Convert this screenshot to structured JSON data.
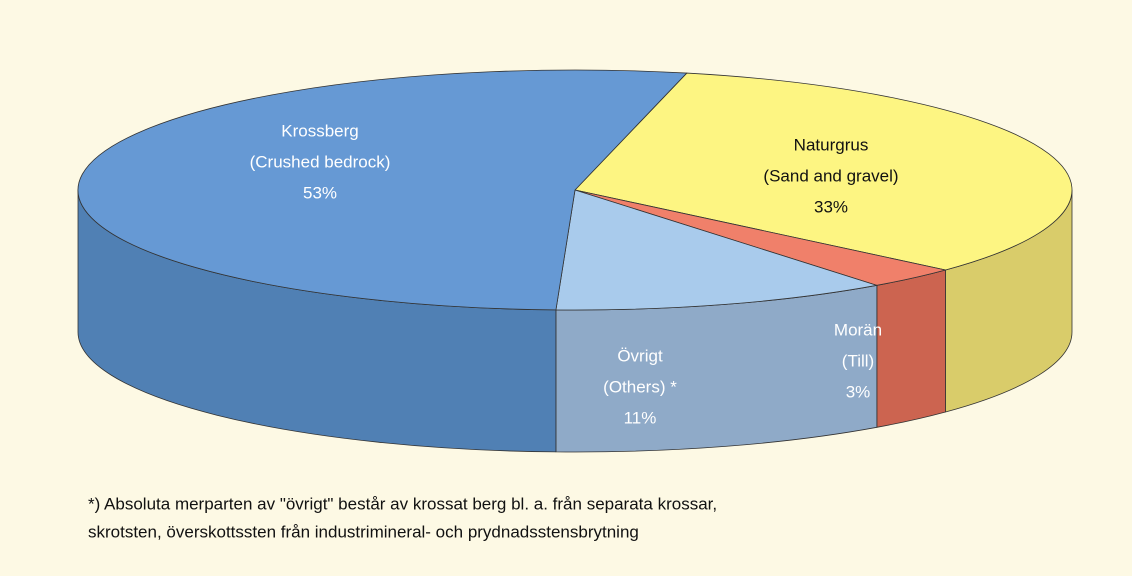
{
  "chart_data": {
    "type": "pie3d",
    "labels": [
      [
        "Naturgrus",
        "(Sand and gravel)"
      ],
      [
        "Morän",
        "(Till)"
      ],
      [
        "Övrigt",
        "(Others) *"
      ],
      [
        "Krossberg",
        "(Crushed bedrock)"
      ]
    ],
    "values": [
      33,
      3,
      11,
      53
    ],
    "value_labels": [
      "33%",
      "3%",
      "11%",
      "53%"
    ],
    "colors": [
      "#fdf582",
      "#f0806a",
      "#a9cbec",
      "#6699d4"
    ],
    "side_colors": [
      "#d9cc6a",
      "#cc6450",
      "#8faac8",
      "#5080b4"
    ],
    "note": [
      "*) Absoluta merparten av \"övrigt\" består av krossat berg bl. a. från separata krossar,",
      "skrotsten, överskottssten från industrimineral- och prydnadsstensbrytning"
    ]
  }
}
